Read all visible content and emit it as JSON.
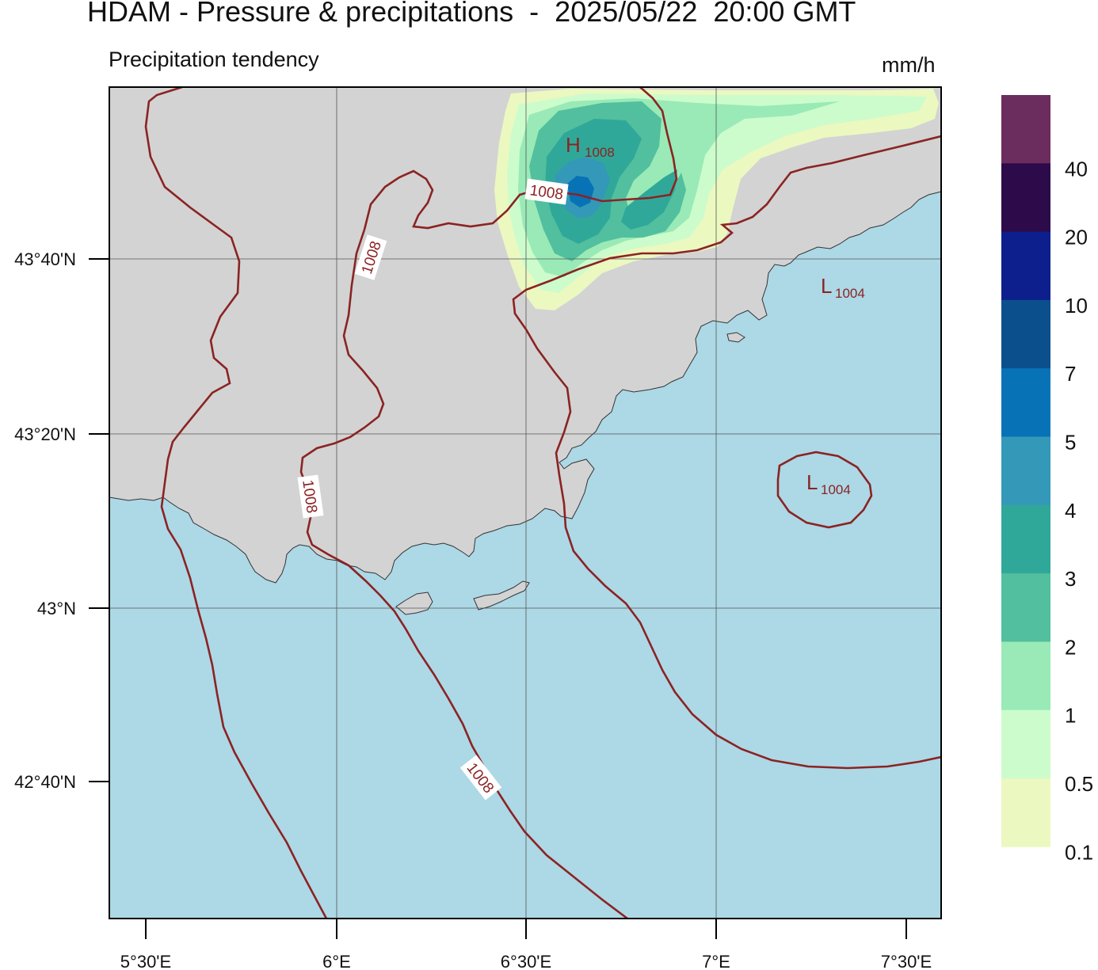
{
  "title": "HDAM - Pressure & precipitations  -  2025/05/22  20:00 GMT",
  "subtitle": "Precipitation tendency",
  "units": "mm/h",
  "colors": {
    "land": "#d3d3d3",
    "sea": "#add8e6",
    "isobar": "#8b2323",
    "gridline": "#555555"
  },
  "axes": {
    "lat_ticks": [
      "43°40'N",
      "43°20'N",
      "43°N",
      "42°40'N"
    ],
    "lon_ticks": [
      "5°30'E",
      "6°E",
      "6°30'E",
      "7°E",
      "7°30'E"
    ]
  },
  "isobar_labels": [
    "1008",
    "1008",
    "1008",
    "1008"
  ],
  "pressure_centers": [
    {
      "type": "H",
      "value": "1008"
    },
    {
      "type": "L",
      "value": "1004"
    },
    {
      "type": "L",
      "value": "1004"
    }
  ],
  "legend": {
    "labels": [
      "40",
      "20",
      "10",
      "7",
      "5",
      "4",
      "3",
      "2",
      "1",
      "0.5",
      "0.1"
    ],
    "colors": [
      "#6b2c5e",
      "#2d0a4a",
      "#0d1f8c",
      "#0b4f8c",
      "#0872b6",
      "#3498b8",
      "#30a899",
      "#52bf9f",
      "#99eab6",
      "#ccfccc",
      "#ebf8c0"
    ]
  }
}
